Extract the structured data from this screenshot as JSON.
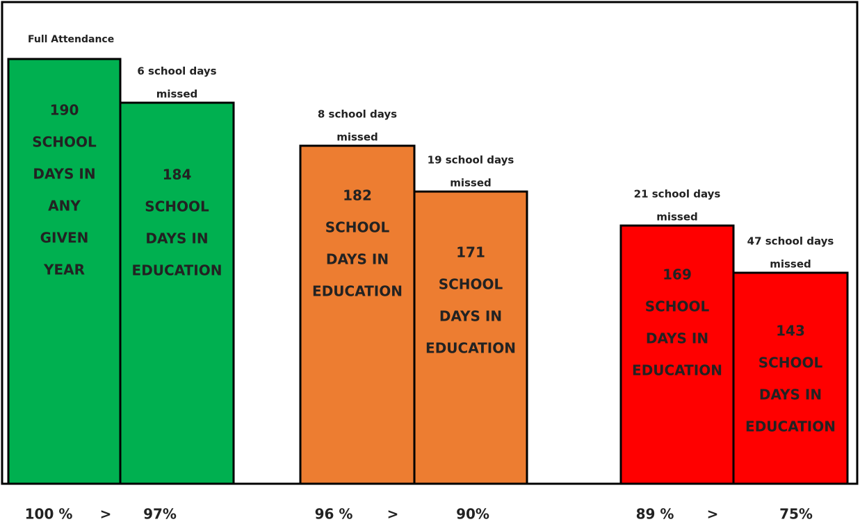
{
  "top_label": "Full Attendance",
  "bars": [
    {
      "lines": [
        "190",
        "SCHOOL",
        "DAYS IN",
        "ANY",
        "GIVEN",
        "YEAR"
      ]
    },
    {
      "note": [
        "6 school days",
        "missed"
      ],
      "lines": [
        "184",
        "SCHOOL",
        "DAYS IN",
        "EDUCATION"
      ]
    },
    {
      "note": [
        "8 school days",
        "missed"
      ],
      "lines": [
        "182",
        "SCHOOL",
        "DAYS IN",
        "EDUCATION"
      ]
    },
    {
      "note": [
        "19 school days",
        "missed"
      ],
      "lines": [
        "171",
        "SCHOOL",
        "DAYS IN",
        "EDUCATION"
      ]
    },
    {
      "note": [
        "21 school days",
        "missed"
      ],
      "lines": [
        "169",
        "SCHOOL",
        "DAYS IN",
        "EDUCATION"
      ]
    },
    {
      "note": [
        "47 school days",
        "missed"
      ],
      "lines": [
        "143",
        "SCHOOL",
        "DAYS IN",
        "EDUCATION"
      ]
    }
  ],
  "footer": [
    {
      "from": "100 %",
      "sep": ">",
      "to": "97%"
    },
    {
      "from": "96 %",
      "sep": ">",
      "to": "90%"
    },
    {
      "from": "89 %",
      "sep": ">",
      "to": "75%"
    }
  ]
}
